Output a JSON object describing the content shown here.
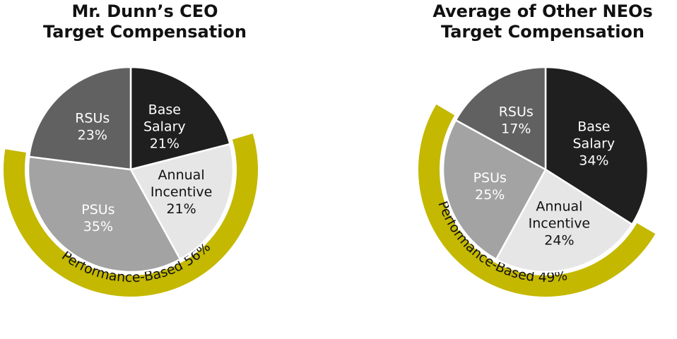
{
  "colors": {
    "base_salary": "#1f1f1f",
    "annual_incentive": "#e6e6e6",
    "psus": "#a3a3a3",
    "rsus": "#616161",
    "performance_band": "#c4b800",
    "dark_text": "#111111",
    "light_text": "#ffffff"
  },
  "chart_data": [
    {
      "type": "pie",
      "title_lines": [
        "Mr. Dunn’s CEO",
        "Target Compensation"
      ],
      "slices": [
        {
          "key": "base_salary",
          "label_lines": [
            "Base",
            "Salary",
            "21%"
          ],
          "value": 21
        },
        {
          "key": "annual_incentive",
          "label_lines": [
            "Annual",
            "Incentive",
            "21%"
          ],
          "value": 21
        },
        {
          "key": "psus",
          "label_lines": [
            "PSUs",
            "35%"
          ],
          "value": 35
        },
        {
          "key": "rsus",
          "label_lines": [
            "RSUs",
            "23%"
          ],
          "value": 23
        }
      ],
      "performance_band": {
        "label": "Performance-Based 56%",
        "value": 56,
        "covers": [
          "annual_incentive",
          "psus"
        ]
      }
    },
    {
      "type": "pie",
      "title_lines": [
        "Average of Other NEOs",
        "Target Compensation"
      ],
      "slices": [
        {
          "key": "base_salary",
          "label_lines": [
            "Base",
            "Salary",
            "34%"
          ],
          "value": 34
        },
        {
          "key": "annual_incentive",
          "label_lines": [
            "Annual",
            "Incentive",
            "24%"
          ],
          "value": 24
        },
        {
          "key": "psus",
          "label_lines": [
            "PSUs",
            "25%"
          ],
          "value": 25
        },
        {
          "key": "rsus",
          "label_lines": [
            "RSUs",
            "17%"
          ],
          "value": 17
        }
      ],
      "performance_band": {
        "label": "Performance-Based 49%",
        "value": 49,
        "covers": [
          "annual_incentive",
          "psus"
        ]
      }
    }
  ]
}
